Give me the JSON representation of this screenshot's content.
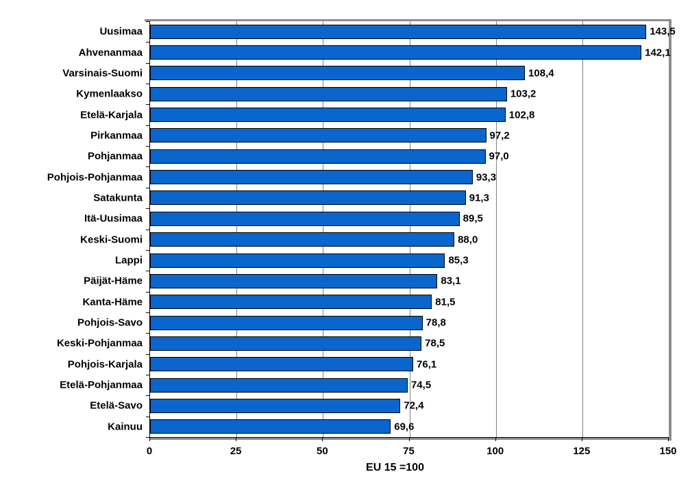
{
  "chart_data": {
    "type": "bar",
    "orientation": "horizontal",
    "title": "",
    "xlabel": "EU 15 =100",
    "ylabel": "",
    "xlim": [
      0,
      150
    ],
    "x_ticks": [
      0,
      25,
      50,
      75,
      100,
      125,
      150
    ],
    "x_tick_labels": [
      "0",
      "25",
      "50",
      "75",
      "100",
      "125",
      "150"
    ],
    "grid": true,
    "legend": false,
    "categories": [
      "Uusimaa",
      "Ahvenanmaa",
      "Varsinais-Suomi",
      "Kymenlaakso",
      "Etelä-Karjala",
      "Pirkanmaa",
      "Pohjanmaa",
      "Pohjois-Pohjanmaa",
      "Satakunta",
      "Itä-Uusimaa",
      "Keski-Suomi",
      "Lappi",
      "Päijät-Häme",
      "Kanta-Häme",
      "Pohjois-Savo",
      "Keski-Pohjanmaa",
      "Pohjois-Karjala",
      "Etelä-Pohjanmaa",
      "Etelä-Savo",
      "Kainuu"
    ],
    "values": [
      143.5,
      142.1,
      108.4,
      103.2,
      102.8,
      97.2,
      97.0,
      93.3,
      91.3,
      89.5,
      88.0,
      85.3,
      83.1,
      81.5,
      78.8,
      78.5,
      76.1,
      74.5,
      72.4,
      69.6
    ],
    "value_labels": [
      "143,5",
      "142,1",
      "108,4",
      "103,2",
      "102,8",
      "97,2",
      "97,0",
      "93,3",
      "91,3",
      "89,5",
      "88,0",
      "85,3",
      "83,1",
      "81,5",
      "78,8",
      "78,5",
      "76,1",
      "74,5",
      "72,4",
      "69,6"
    ],
    "colors": {
      "bar_fill": "#0A66CC",
      "bar_border": "#000000",
      "gridline": "#808080",
      "plot_border": "#8C8C8C",
      "axis_line": "#000000",
      "text": "#000000",
      "background": "#FFFFFF"
    }
  }
}
